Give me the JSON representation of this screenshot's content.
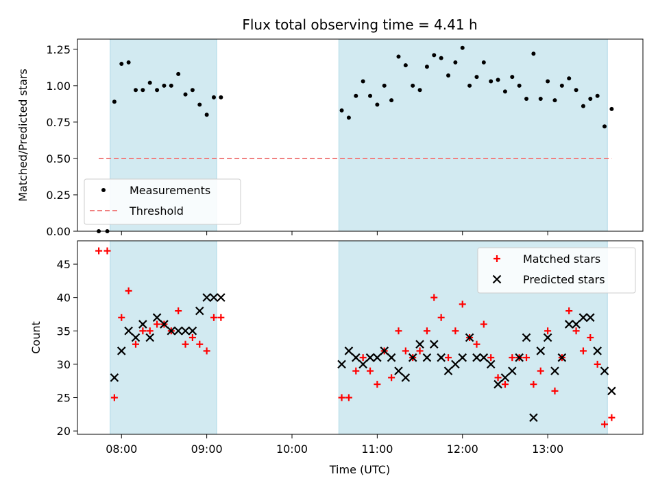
{
  "chart_data": [
    {
      "type": "scatter",
      "title": "Flux total observing time = 4.41 h",
      "xlabel": "",
      "ylabel": "Matched/Predicted stars",
      "ylim": [
        0,
        1.32
      ],
      "yticks": [
        "0.00",
        "0.25",
        "0.50",
        "0.75",
        "1.00",
        "1.25"
      ],
      "ytick_values": [
        0,
        0.25,
        0.5,
        0.75,
        1.0,
        1.25
      ],
      "xlim": [
        "07:29",
        "14:07"
      ],
      "legend_position": "lower-left",
      "shaded_intervals": [
        [
          "07:52",
          "09:07"
        ],
        [
          "10:33",
          "13:42"
        ]
      ],
      "series": [
        {
          "name": "Measurements",
          "style": "dot",
          "color": "#000000",
          "points": [
            [
              "07:44",
              0.0
            ],
            [
              "07:50",
              0.0
            ],
            [
              "07:55",
              0.89
            ],
            [
              "08:00",
              1.15
            ],
            [
              "08:05",
              1.16
            ],
            [
              "08:10",
              0.97
            ],
            [
              "08:15",
              0.97
            ],
            [
              "08:20",
              1.02
            ],
            [
              "08:25",
              0.97
            ],
            [
              "08:30",
              1.0
            ],
            [
              "08:35",
              1.0
            ],
            [
              "08:40",
              1.08
            ],
            [
              "08:45",
              0.94
            ],
            [
              "08:50",
              0.97
            ],
            [
              "08:55",
              0.87
            ],
            [
              "09:00",
              0.8
            ],
            [
              "09:05",
              0.92
            ],
            [
              "09:10",
              0.92
            ],
            [
              "10:35",
              0.83
            ],
            [
              "10:40",
              0.78
            ],
            [
              "10:45",
              0.93
            ],
            [
              "10:50",
              1.03
            ],
            [
              "10:55",
              0.93
            ],
            [
              "11:00",
              0.87
            ],
            [
              "11:05",
              1.0
            ],
            [
              "11:10",
              0.9
            ],
            [
              "11:15",
              1.2
            ],
            [
              "11:20",
              1.14
            ],
            [
              "11:25",
              1.0
            ],
            [
              "11:30",
              0.97
            ],
            [
              "11:35",
              1.13
            ],
            [
              "11:40",
              1.21
            ],
            [
              "11:45",
              1.19
            ],
            [
              "11:50",
              1.07
            ],
            [
              "11:55",
              1.16
            ],
            [
              "12:00",
              1.26
            ],
            [
              "12:05",
              1.0
            ],
            [
              "12:10",
              1.06
            ],
            [
              "12:15",
              1.16
            ],
            [
              "12:20",
              1.03
            ],
            [
              "12:25",
              1.04
            ],
            [
              "12:30",
              0.96
            ],
            [
              "12:35",
              1.06
            ],
            [
              "12:40",
              1.0
            ],
            [
              "12:45",
              0.91
            ],
            [
              "12:50",
              1.22
            ],
            [
              "12:55",
              0.91
            ],
            [
              "13:00",
              1.03
            ],
            [
              "13:05",
              0.9
            ],
            [
              "13:10",
              1.0
            ],
            [
              "13:15",
              1.05
            ],
            [
              "13:20",
              0.97
            ],
            [
              "13:25",
              0.86
            ],
            [
              "13:30",
              0.91
            ],
            [
              "13:35",
              0.93
            ],
            [
              "13:40",
              0.72
            ],
            [
              "13:45",
              0.84
            ]
          ]
        },
        {
          "name": "Threshold",
          "style": "dashed-line",
          "color": "#f08080",
          "points": [
            [
              "07:44",
              0.5
            ],
            [
              "13:45",
              0.5
            ]
          ]
        }
      ]
    },
    {
      "type": "scatter",
      "title": "",
      "xlabel": "Time (UTC)",
      "ylabel": "Count",
      "ylim": [
        19.5,
        48.5
      ],
      "yticks": [
        "20",
        "25",
        "30",
        "35",
        "40",
        "45"
      ],
      "ytick_values": [
        20,
        25,
        30,
        35,
        40,
        45
      ],
      "xlim": [
        "07:29",
        "14:07"
      ],
      "xticks": [
        "08:00",
        "09:00",
        "10:00",
        "11:00",
        "12:00",
        "13:00"
      ],
      "legend_position": "top-right",
      "shaded_intervals": [
        [
          "07:52",
          "09:07"
        ],
        [
          "10:33",
          "13:42"
        ]
      ],
      "series": [
        {
          "name": "Matched stars",
          "style": "plus",
          "color": "#ff0000",
          "points": [
            [
              "07:44",
              47
            ],
            [
              "07:50",
              47
            ],
            [
              "07:55",
              25
            ],
            [
              "08:00",
              37
            ],
            [
              "08:05",
              41
            ],
            [
              "08:10",
              33
            ],
            [
              "08:15",
              35
            ],
            [
              "08:20",
              35
            ],
            [
              "08:25",
              36
            ],
            [
              "08:30",
              36
            ],
            [
              "08:35",
              35
            ],
            [
              "08:40",
              38
            ],
            [
              "08:45",
              33
            ],
            [
              "08:50",
              34
            ],
            [
              "08:55",
              33
            ],
            [
              "09:00",
              32
            ],
            [
              "09:05",
              37
            ],
            [
              "09:10",
              37
            ],
            [
              "10:35",
              25
            ],
            [
              "10:40",
              25
            ],
            [
              "10:45",
              29
            ],
            [
              "10:50",
              31
            ],
            [
              "10:55",
              29
            ],
            [
              "11:00",
              27
            ],
            [
              "11:05",
              32
            ],
            [
              "11:10",
              28
            ],
            [
              "11:15",
              35
            ],
            [
              "11:20",
              32
            ],
            [
              "11:25",
              31
            ],
            [
              "11:30",
              32
            ],
            [
              "11:35",
              35
            ],
            [
              "11:40",
              40
            ],
            [
              "11:45",
              37
            ],
            [
              "11:50",
              31
            ],
            [
              "11:55",
              35
            ],
            [
              "12:00",
              39
            ],
            [
              "12:05",
              34
            ],
            [
              "12:10",
              33
            ],
            [
              "12:15",
              36
            ],
            [
              "12:20",
              31
            ],
            [
              "12:25",
              28
            ],
            [
              "12:30",
              27
            ],
            [
              "12:35",
              31
            ],
            [
              "12:40",
              31
            ],
            [
              "12:45",
              31
            ],
            [
              "12:50",
              27
            ],
            [
              "12:55",
              29
            ],
            [
              "13:00",
              35
            ],
            [
              "13:05",
              26
            ],
            [
              "13:10",
              31
            ],
            [
              "13:15",
              38
            ],
            [
              "13:20",
              35
            ],
            [
              "13:25",
              32
            ],
            [
              "13:30",
              34
            ],
            [
              "13:35",
              30
            ],
            [
              "13:40",
              21
            ],
            [
              "13:45",
              22
            ]
          ]
        },
        {
          "name": "Predicted stars",
          "style": "x",
          "color": "#000000",
          "points": [
            [
              "07:55",
              28
            ],
            [
              "08:00",
              32
            ],
            [
              "08:05",
              35
            ],
            [
              "08:10",
              34
            ],
            [
              "08:15",
              36
            ],
            [
              "08:20",
              34
            ],
            [
              "08:25",
              37
            ],
            [
              "08:30",
              36
            ],
            [
              "08:35",
              35
            ],
            [
              "08:40",
              35
            ],
            [
              "08:45",
              35
            ],
            [
              "08:50",
              35
            ],
            [
              "08:55",
              38
            ],
            [
              "09:00",
              40
            ],
            [
              "09:05",
              40
            ],
            [
              "09:10",
              40
            ],
            [
              "10:35",
              30
            ],
            [
              "10:40",
              32
            ],
            [
              "10:45",
              31
            ],
            [
              "10:50",
              30
            ],
            [
              "10:55",
              31
            ],
            [
              "11:00",
              31
            ],
            [
              "11:05",
              32
            ],
            [
              "11:10",
              31
            ],
            [
              "11:15",
              29
            ],
            [
              "11:20",
              28
            ],
            [
              "11:25",
              31
            ],
            [
              "11:30",
              33
            ],
            [
              "11:35",
              31
            ],
            [
              "11:40",
              33
            ],
            [
              "11:45",
              31
            ],
            [
              "11:50",
              29
            ],
            [
              "11:55",
              30
            ],
            [
              "12:00",
              31
            ],
            [
              "12:05",
              34
            ],
            [
              "12:10",
              31
            ],
            [
              "12:15",
              31
            ],
            [
              "12:20",
              30
            ],
            [
              "12:25",
              27
            ],
            [
              "12:30",
              28
            ],
            [
              "12:35",
              29
            ],
            [
              "12:40",
              31
            ],
            [
              "12:45",
              34
            ],
            [
              "12:50",
              22
            ],
            [
              "12:55",
              32
            ],
            [
              "13:00",
              34
            ],
            [
              "13:05",
              29
            ],
            [
              "13:10",
              31
            ],
            [
              "13:15",
              36
            ],
            [
              "13:20",
              36
            ],
            [
              "13:25",
              37
            ],
            [
              "13:30",
              37
            ],
            [
              "13:35",
              32
            ],
            [
              "13:40",
              29
            ],
            [
              "13:45",
              26
            ]
          ]
        }
      ]
    }
  ],
  "colors": {
    "shade": "#add8e6",
    "measurement": "#000000",
    "threshold": "#f08080",
    "matched": "#ff0000",
    "predicted": "#000000"
  }
}
